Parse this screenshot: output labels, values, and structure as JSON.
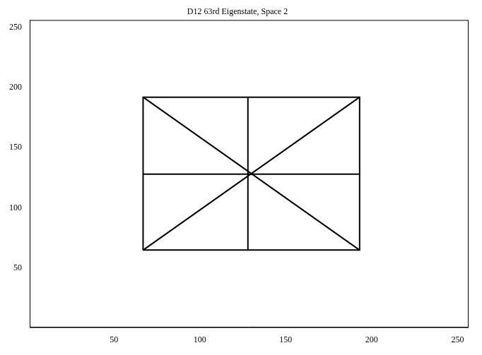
{
  "chart_data": {
    "type": "line",
    "title": "D12 63rd Eigenstate, Space 2",
    "xlim": [
      1,
      256
    ],
    "ylim": [
      1,
      256
    ],
    "xticks": [
      50,
      100,
      150,
      200,
      250
    ],
    "yticks": [
      50,
      100,
      150,
      200,
      250
    ],
    "grid": false,
    "series": [
      {
        "color": "#000000",
        "x": [
          67,
          193,
          193,
          67,
          67
        ],
        "values": [
          65,
          65,
          192,
          192,
          65
        ]
      },
      {
        "color": "#000000",
        "x": [
          128,
          128
        ],
        "values": [
          65,
          192
        ]
      },
      {
        "color": "#000000",
        "x": [
          67,
          193
        ],
        "values": [
          128,
          128
        ]
      },
      {
        "color": "#000000",
        "x": [
          67,
          193
        ],
        "values": [
          65,
          192
        ]
      },
      {
        "color": "#000000",
        "x": [
          67,
          193
        ],
        "values": [
          192,
          65
        ]
      }
    ]
  }
}
